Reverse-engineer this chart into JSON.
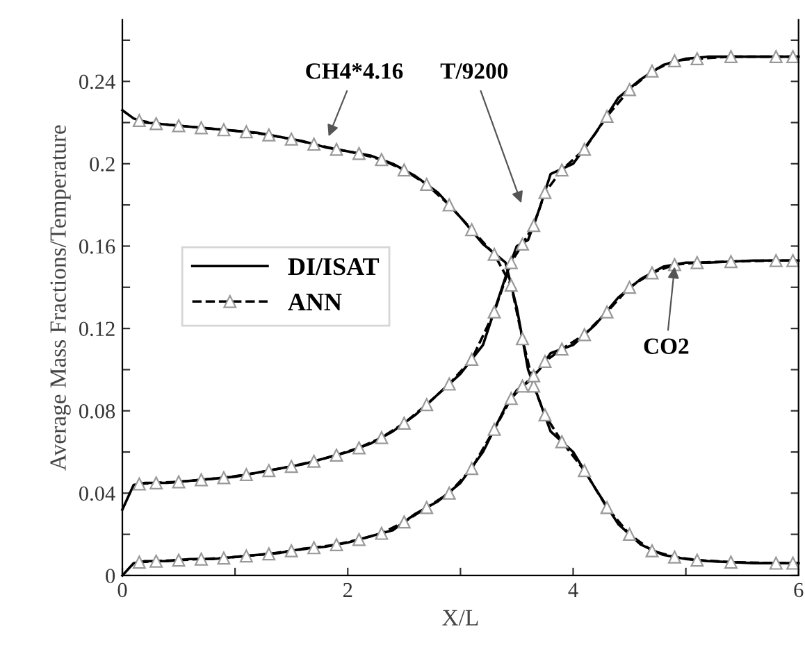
{
  "chart_data": {
    "type": "line",
    "xlabel": "X/L",
    "ylabel": "Average Mass Fractions/Temperature",
    "xlim": [
      0,
      6
    ],
    "xticks": [
      0,
      {
        "value": 1,
        "label": null
      },
      2,
      {
        "value": 3,
        "label": null
      },
      4,
      {
        "value": 5,
        "label": null
      },
      6
    ],
    "ylim": [
      0,
      0.27
    ],
    "yticks": [
      0,
      {
        "value": 0.02,
        "label": null
      },
      0.04,
      {
        "value": 0.06,
        "label": null
      },
      0.08,
      {
        "value": 0.1,
        "label": null
      },
      0.12,
      {
        "value": 0.14,
        "label": null
      },
      0.16,
      {
        "value": 0.18,
        "label": null
      },
      0.2,
      {
        "value": 0.22,
        "label": null
      },
      0.24,
      {
        "value": 0.26,
        "label": null
      }
    ],
    "grid": false,
    "legend": "left",
    "x": [
      0,
      0.1,
      0.2,
      0.4,
      0.6,
      0.8,
      1.0,
      1.2,
      1.4,
      1.6,
      1.8,
      2.0,
      2.2,
      2.4,
      2.6,
      2.8,
      3.0,
      3.2,
      3.4,
      3.5,
      3.6,
      3.7,
      3.8,
      4.0,
      4.2,
      4.4,
      4.6,
      4.8,
      5.0,
      5.2,
      5.6,
      6.0
    ],
    "series": [
      {
        "name": "DI/ISAT",
        "color": "#000000",
        "line_style": "solid",
        "values": [
          0.226,
          0.222,
          0.22,
          0.219,
          0.218,
          0.217,
          0.216,
          0.215,
          0.213,
          0.211,
          0.208,
          0.206,
          0.204,
          0.2,
          0.194,
          0.186,
          0.174,
          0.161,
          0.152,
          0.13,
          0.1,
          0.085,
          0.07,
          0.06,
          0.042,
          0.025,
          0.015,
          0.01,
          0.008,
          0.007,
          0.006,
          0.006
        ]
      },
      {
        "color": "#000000",
        "line_style": "solid",
        "values": [
          0.032,
          0.044,
          0.045,
          0.045,
          0.046,
          0.047,
          0.048,
          0.05,
          0.052,
          0.054,
          0.057,
          0.06,
          0.064,
          0.07,
          0.078,
          0.088,
          0.098,
          0.112,
          0.145,
          0.16,
          0.163,
          0.178,
          0.195,
          0.2,
          0.215,
          0.232,
          0.241,
          0.248,
          0.251,
          0.252,
          0.252,
          0.252
        ]
      },
      {
        "color": "#000000",
        "line_style": "solid",
        "values": [
          0.0,
          0.006,
          0.007,
          0.007,
          0.008,
          0.008,
          0.009,
          0.01,
          0.011,
          0.013,
          0.014,
          0.016,
          0.019,
          0.022,
          0.03,
          0.036,
          0.045,
          0.06,
          0.082,
          0.09,
          0.094,
          0.1,
          0.108,
          0.112,
          0.122,
          0.135,
          0.144,
          0.15,
          0.152,
          0.152,
          0.153,
          0.153
        ]
      },
      {
        "name": "ANN",
        "color": "#000000",
        "line_style": "dashed",
        "marker": "triangle",
        "x": [
          0.15,
          0.3,
          0.5,
          0.7,
          0.9,
          1.1,
          1.3,
          1.5,
          1.7,
          1.9,
          2.1,
          2.3,
          2.5,
          2.7,
          2.9,
          3.1,
          3.3,
          3.45,
          3.55,
          3.65,
          3.75,
          3.9,
          4.1,
          4.3,
          4.5,
          4.7,
          4.9,
          5.1,
          5.4,
          5.8,
          5.95
        ],
        "values": [
          0.221,
          0.2195,
          0.2185,
          0.2175,
          0.2165,
          0.2155,
          0.214,
          0.212,
          0.2095,
          0.207,
          0.205,
          0.202,
          0.197,
          0.19,
          0.18,
          0.168,
          0.156,
          0.141,
          0.115,
          0.092,
          0.078,
          0.065,
          0.051,
          0.033,
          0.02,
          0.012,
          0.009,
          0.0075,
          0.0065,
          0.006,
          0.006
        ]
      },
      {
        "color": "#000000",
        "line_style": "dashed",
        "marker": "triangle",
        "x": [
          0.15,
          0.3,
          0.5,
          0.7,
          0.9,
          1.1,
          1.3,
          1.5,
          1.7,
          1.9,
          2.1,
          2.3,
          2.5,
          2.7,
          2.9,
          3.1,
          3.3,
          3.45,
          3.55,
          3.65,
          3.75,
          3.9,
          4.1,
          4.3,
          4.5,
          4.7,
          4.9,
          5.1,
          5.4,
          5.8,
          5.95
        ],
        "values": [
          0.0445,
          0.045,
          0.0455,
          0.0465,
          0.0475,
          0.049,
          0.051,
          0.053,
          0.0555,
          0.0585,
          0.062,
          0.067,
          0.074,
          0.083,
          0.093,
          0.105,
          0.128,
          0.152,
          0.161,
          0.17,
          0.186,
          0.197,
          0.207,
          0.223,
          0.236,
          0.245,
          0.25,
          0.251,
          0.252,
          0.252,
          0.252
        ]
      },
      {
        "color": "#000000",
        "line_style": "dashed",
        "marker": "triangle",
        "x": [
          0.15,
          0.3,
          0.5,
          0.7,
          0.9,
          1.1,
          1.3,
          1.5,
          1.7,
          1.9,
          2.1,
          2.3,
          2.5,
          2.7,
          2.9,
          3.1,
          3.3,
          3.45,
          3.55,
          3.65,
          3.75,
          3.9,
          4.1,
          4.3,
          4.5,
          4.7,
          4.9,
          5.1,
          5.4,
          5.8,
          5.95
        ],
        "values": [
          0.0065,
          0.007,
          0.0075,
          0.008,
          0.0085,
          0.0095,
          0.0105,
          0.012,
          0.0135,
          0.015,
          0.0175,
          0.0205,
          0.026,
          0.033,
          0.04,
          0.052,
          0.071,
          0.086,
          0.092,
          0.097,
          0.104,
          0.11,
          0.117,
          0.128,
          0.14,
          0.147,
          0.151,
          0.152,
          0.1525,
          0.153,
          0.153
        ]
      }
    ],
    "annotations": [
      "CH4*4.16",
      "T/9200",
      {
        "text": "CO2",
        "x": 4.9,
        "y": 0.15
      }
    ]
  }
}
